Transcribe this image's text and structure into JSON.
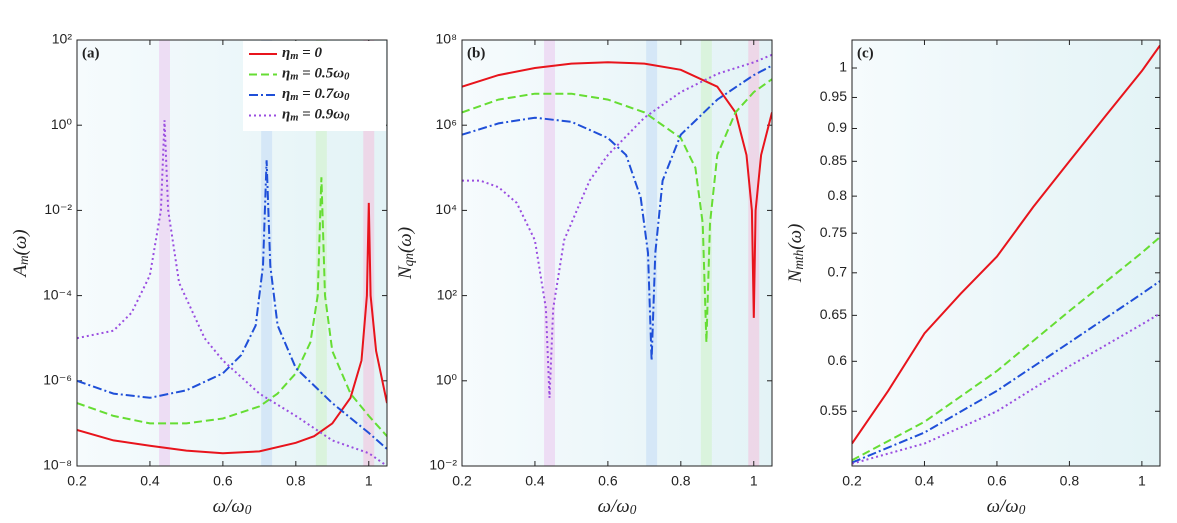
{
  "chart_data": [
    {
      "type": "line",
      "label": "(a)",
      "yscale": "log",
      "ylabel": [
        "A",
        "m",
        "(ω)"
      ],
      "xlabel": [
        "ω/ω",
        "0"
      ],
      "xlim": [
        0.2,
        1.05
      ],
      "xticks": [
        0.2,
        0.4,
        0.6,
        0.8,
        1
      ],
      "ylim": [
        1e-08,
        100
      ],
      "yticks": [
        {
          "value": 1e-08,
          "label": "10⁻⁸"
        },
        {
          "value": 1e-06,
          "label": "10⁻⁶"
        },
        {
          "value": 0.0001,
          "label": "10⁻⁴"
        },
        {
          "value": 0.01,
          "label": "10⁻²"
        },
        {
          "value": 1,
          "label": "10⁰"
        },
        {
          "value": 100,
          "label": "10²"
        }
      ],
      "legend": "upper right",
      "bands": [
        {
          "x": 0.44,
          "color": "#ecd6f3"
        },
        {
          "x": 0.72,
          "color": "#cfe3f6"
        },
        {
          "x": 0.87,
          "color": "#d7f2d6"
        },
        {
          "x": 1.0,
          "color": "#efcfe3"
        }
      ],
      "series": [
        {
          "name": [
            "η",
            "m",
            " = 0"
          ],
          "color": "#e8141c",
          "style": "solid",
          "x": [
            0.2,
            0.3,
            0.4,
            0.5,
            0.6,
            0.7,
            0.8,
            0.85,
            0.9,
            0.95,
            0.98,
            0.995,
            1.0,
            1.005,
            1.02,
            1.05
          ],
          "values": [
            7e-08,
            4e-08,
            3e-08,
            2.3e-08,
            2e-08,
            2.2e-08,
            3.5e-08,
            5e-08,
            1e-07,
            4e-07,
            3e-06,
            0.0001,
            0.015,
            0.0001,
            5e-06,
            3e-07
          ]
        },
        {
          "name": [
            "η",
            "m",
            " = 0.5ω",
            "0"
          ],
          "color": "#66dd33",
          "style": "dashed",
          "x": [
            0.2,
            0.3,
            0.4,
            0.5,
            0.6,
            0.7,
            0.75,
            0.8,
            0.84,
            0.86,
            0.87,
            0.88,
            0.9,
            0.95,
            1.0,
            1.05
          ],
          "values": [
            3e-07,
            1.5e-07,
            1e-07,
            1e-07,
            1.3e-07,
            2.5e-07,
            5e-07,
            1.5e-06,
            8e-06,
            0.0001,
            0.06,
            0.0001,
            5e-06,
            5e-07,
            1.5e-07,
            5e-08
          ]
        },
        {
          "name": [
            "η",
            "m",
            " = 0.7ω",
            "0"
          ],
          "color": "#1f4fd8",
          "style": "dashdot",
          "x": [
            0.2,
            0.3,
            0.4,
            0.5,
            0.6,
            0.65,
            0.69,
            0.71,
            0.72,
            0.73,
            0.75,
            0.8,
            0.9,
            1.0,
            1.05
          ],
          "values": [
            1e-06,
            5e-07,
            4e-07,
            6e-07,
            1.5e-06,
            4e-06,
            2e-05,
            0.0005,
            0.15,
            0.0005,
            2e-05,
            2e-06,
            3e-07,
            6e-08,
            2.5e-08
          ]
        },
        {
          "name": [
            "η",
            "m",
            " = 0.9ω",
            "0"
          ],
          "color": "#9a4de0",
          "style": "dotted",
          "x": [
            0.2,
            0.3,
            0.35,
            0.4,
            0.43,
            0.44,
            0.45,
            0.48,
            0.55,
            0.6,
            0.7,
            0.8,
            0.9,
            1.0,
            1.05
          ],
          "values": [
            1e-05,
            1.5e-05,
            4e-05,
            0.0003,
            0.01,
            1.3,
            0.01,
            0.0002,
            1e-05,
            3e-06,
            5e-07,
            1.5e-07,
            4e-08,
            2e-08,
            1e-08
          ]
        }
      ]
    },
    {
      "type": "line",
      "label": "(b)",
      "yscale": "log",
      "ylabel": [
        "N",
        "qn",
        "(ω)"
      ],
      "xlabel": [
        "ω/ω",
        "0"
      ],
      "xlim": [
        0.2,
        1.05
      ],
      "xticks": [
        0.2,
        0.4,
        0.6,
        0.8,
        1
      ],
      "ylim": [
        0.01,
        100000000
      ],
      "yticks": [
        {
          "value": 0.01,
          "label": "10⁻²"
        },
        {
          "value": 1,
          "label": "10⁰"
        },
        {
          "value": 100,
          "label": "10²"
        },
        {
          "value": 10000,
          "label": "10⁴"
        },
        {
          "value": 1000000,
          "label": "10⁶"
        },
        {
          "value": 100000000,
          "label": "10⁸"
        }
      ],
      "bands": [
        {
          "x": 0.44,
          "color": "#ecd6f3"
        },
        {
          "x": 0.72,
          "color": "#cfe3f6"
        },
        {
          "x": 0.87,
          "color": "#d7f2d6"
        },
        {
          "x": 1.0,
          "color": "#efcfe3"
        }
      ],
      "series": [
        {
          "color": "#e8141c",
          "style": "solid",
          "x": [
            0.2,
            0.3,
            0.4,
            0.5,
            0.6,
            0.7,
            0.8,
            0.9,
            0.95,
            0.98,
            0.995,
            1.0,
            1.005,
            1.02,
            1.05
          ],
          "values": [
            8000000,
            15000000,
            22000000,
            28000000,
            30000000,
            28000000,
            20000000,
            8000000,
            2000000,
            200000,
            10000,
            30,
            10000,
            200000,
            2000000
          ]
        },
        {
          "color": "#66dd33",
          "style": "dashed",
          "x": [
            0.2,
            0.3,
            0.4,
            0.5,
            0.6,
            0.7,
            0.8,
            0.84,
            0.86,
            0.87,
            0.88,
            0.9,
            0.95,
            1.0,
            1.05
          ],
          "values": [
            2000000,
            4000000,
            5500000,
            5500000,
            4000000,
            2000000,
            500000,
            100000,
            5000,
            8,
            5000,
            200000,
            2000000,
            6000000,
            12000000
          ]
        },
        {
          "color": "#1f4fd8",
          "style": "dashdot",
          "x": [
            0.2,
            0.3,
            0.4,
            0.5,
            0.6,
            0.65,
            0.69,
            0.71,
            0.72,
            0.73,
            0.75,
            0.8,
            0.9,
            1.0,
            1.05
          ],
          "values": [
            600000,
            1100000,
            1500000,
            1200000,
            500000,
            200000,
            20000,
            1000,
            3,
            1000,
            50000,
            600000,
            4000000,
            15000000,
            25000000
          ]
        },
        {
          "color": "#9a4de0",
          "style": "dotted",
          "x": [
            0.2,
            0.25,
            0.3,
            0.35,
            0.4,
            0.43,
            0.44,
            0.45,
            0.48,
            0.55,
            0.6,
            0.7,
            0.8,
            0.9,
            1.0,
            1.05
          ],
          "values": [
            50000,
            50000,
            35000,
            15000,
            2000,
            50,
            0.4,
            50,
            2000,
            50000,
            200000,
            1500000,
            6000000,
            16000000,
            30000000,
            45000000
          ]
        }
      ]
    },
    {
      "type": "line",
      "label": "(c)",
      "yscale": "log",
      "ylabel": [
        "N",
        "mth",
        "(ω)"
      ],
      "xlabel": [
        "ω/ω",
        "0"
      ],
      "xlim": [
        0.2,
        1.05
      ],
      "xticks": [
        0.2,
        0.4,
        0.6,
        0.8,
        1
      ],
      "ylim": [
        0.5,
        1.05
      ],
      "yticks": [
        0.55,
        0.6,
        0.65,
        0.7,
        0.75,
        0.8,
        0.85,
        0.9,
        0.95,
        1
      ],
      "series": [
        {
          "color": "#e8141c",
          "style": "solid",
          "x": [
            0.2,
            0.3,
            0.4,
            0.5,
            0.6,
            0.7,
            0.8,
            0.9,
            1.0,
            1.05
          ],
          "values": [
            0.52,
            0.57,
            0.63,
            0.675,
            0.72,
            0.785,
            0.85,
            0.92,
            0.995,
            1.04
          ]
        },
        {
          "color": "#66dd33",
          "style": "dashed",
          "x": [
            0.2,
            0.4,
            0.6,
            0.8,
            1.0,
            1.05
          ],
          "values": [
            0.505,
            0.54,
            0.59,
            0.655,
            0.725,
            0.745
          ]
        },
        {
          "color": "#1f4fd8",
          "style": "dashdot",
          "x": [
            0.2,
            0.4,
            0.6,
            0.8,
            1.0,
            1.05
          ],
          "values": [
            0.503,
            0.53,
            0.57,
            0.62,
            0.675,
            0.69
          ]
        },
        {
          "color": "#9a4de0",
          "style": "dotted",
          "x": [
            0.2,
            0.4,
            0.6,
            0.8,
            1.0,
            1.05
          ],
          "values": [
            0.502,
            0.52,
            0.55,
            0.595,
            0.64,
            0.652
          ]
        }
      ]
    }
  ]
}
